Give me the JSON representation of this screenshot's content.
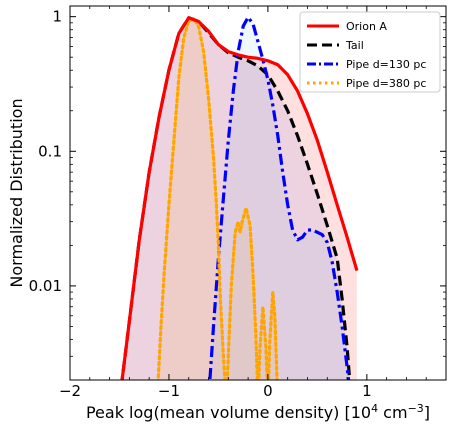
{
  "chart_data": {
    "type": "area",
    "xlabel": "Peak log(mean volume density) [10",
    "xlabel_sup1": "4",
    "xlabel_mid": " cm",
    "xlabel_sup2": "−3",
    "xlabel_end": "]",
    "ylabel": "Normalized Distribution",
    "xlim": [
      -2.0,
      1.8
    ],
    "ylim": [
      0.002,
      1.2
    ],
    "yscale": "log",
    "x_ticks": [
      -2,
      -1,
      0,
      1
    ],
    "x_tick_labels": [
      "−2",
      "−1",
      "0",
      "1"
    ],
    "y_ticks": [
      0.01,
      0.1,
      1
    ],
    "y_tick_labels": [
      "0.01",
      "0.1",
      "1"
    ],
    "legend_position": "top-right",
    "series": [
      {
        "name": "Orion A",
        "color": "#ff0000",
        "style": "solid",
        "fill": "rgba(255,0,0,0.12)",
        "points": [
          [
            -1.5,
            0.0014
          ],
          [
            -1.4,
            0.0055
          ],
          [
            -1.3,
            0.022
          ],
          [
            -1.2,
            0.07
          ],
          [
            -1.1,
            0.18
          ],
          [
            -1.0,
            0.4
          ],
          [
            -0.9,
            0.75
          ],
          [
            -0.8,
            0.98
          ],
          [
            -0.7,
            0.92
          ],
          [
            -0.6,
            0.78
          ],
          [
            -0.5,
            0.62
          ],
          [
            -0.4,
            0.55
          ],
          [
            -0.3,
            0.52
          ],
          [
            -0.2,
            0.5
          ],
          [
            -0.1,
            0.49
          ],
          [
            0.0,
            0.47
          ],
          [
            0.1,
            0.44
          ],
          [
            0.2,
            0.37
          ],
          [
            0.3,
            0.28
          ],
          [
            0.4,
            0.19
          ],
          [
            0.5,
            0.12
          ],
          [
            0.6,
            0.07
          ],
          [
            0.7,
            0.04
          ],
          [
            0.8,
            0.023
          ],
          [
            0.9,
            0.013
          ]
        ]
      },
      {
        "name": "Tail",
        "color": "#000000",
        "style": "dashed",
        "fill": "rgba(130,130,220,0.14)",
        "points": [
          [
            -1.5,
            0.0014
          ],
          [
            -1.4,
            0.0055
          ],
          [
            -1.3,
            0.022
          ],
          [
            -1.2,
            0.07
          ],
          [
            -1.1,
            0.18
          ],
          [
            -1.0,
            0.4
          ],
          [
            -0.9,
            0.75
          ],
          [
            -0.8,
            0.98
          ],
          [
            -0.7,
            0.92
          ],
          [
            -0.6,
            0.76
          ],
          [
            -0.5,
            0.62
          ],
          [
            -0.4,
            0.54
          ],
          [
            -0.3,
            0.5
          ],
          [
            -0.2,
            0.47
          ],
          [
            -0.1,
            0.43
          ],
          [
            0.0,
            0.37
          ],
          [
            0.1,
            0.28
          ],
          [
            0.2,
            0.2
          ],
          [
            0.3,
            0.13
          ],
          [
            0.4,
            0.08
          ],
          [
            0.5,
            0.048
          ],
          [
            0.6,
            0.028
          ],
          [
            0.7,
            0.016
          ],
          [
            0.75,
            0.008
          ],
          [
            0.8,
            0.0035
          ],
          [
            0.85,
            0.0012
          ]
        ]
      },
      {
        "name": "Pipe d=130 pc",
        "color": "#0000ff",
        "style": "dashdot",
        "fill": "rgba(0,140,255,0.06)",
        "points": [
          [
            -0.6,
            0.0014
          ],
          [
            -0.55,
            0.005
          ],
          [
            -0.5,
            0.016
          ],
          [
            -0.45,
            0.045
          ],
          [
            -0.4,
            0.12
          ],
          [
            -0.35,
            0.28
          ],
          [
            -0.3,
            0.55
          ],
          [
            -0.25,
            0.85
          ],
          [
            -0.2,
            0.99
          ],
          [
            -0.15,
            0.88
          ],
          [
            -0.1,
            0.65
          ],
          [
            -0.05,
            0.48
          ],
          [
            0.0,
            0.34
          ],
          [
            0.05,
            0.22
          ],
          [
            0.1,
            0.13
          ],
          [
            0.15,
            0.07
          ],
          [
            0.2,
            0.04
          ],
          [
            0.25,
            0.026
          ],
          [
            0.3,
            0.022
          ],
          [
            0.35,
            0.023
          ],
          [
            0.4,
            0.026
          ],
          [
            0.45,
            0.026
          ],
          [
            0.5,
            0.025
          ],
          [
            0.55,
            0.024
          ],
          [
            0.6,
            0.021
          ],
          [
            0.65,
            0.015
          ],
          [
            0.7,
            0.009
          ],
          [
            0.75,
            0.005
          ],
          [
            0.8,
            0.0025
          ],
          [
            0.85,
            0.0012
          ]
        ]
      },
      {
        "name": "Pipe d=380 pc",
        "color": "#ffa500",
        "style": "dotted",
        "fill": "rgba(255,165,0,0.10)",
        "points": [
          [
            -1.12,
            0.0014
          ],
          [
            -1.08,
            0.005
          ],
          [
            -1.05,
            0.012
          ],
          [
            -1.0,
            0.04
          ],
          [
            -0.95,
            0.12
          ],
          [
            -0.9,
            0.35
          ],
          [
            -0.85,
            0.7
          ],
          [
            -0.8,
            0.92
          ],
          [
            -0.75,
            0.97
          ],
          [
            -0.7,
            0.85
          ],
          [
            -0.65,
            0.55
          ],
          [
            -0.6,
            0.25
          ],
          [
            -0.55,
            0.09
          ],
          [
            -0.52,
            0.04
          ],
          [
            -0.5,
            0.02
          ],
          [
            -0.48,
            0.008
          ],
          [
            -0.45,
            0.003
          ],
          [
            -0.42,
            0.0014
          ],
          [
            -0.4,
            0.003
          ],
          [
            -0.37,
            0.01
          ],
          [
            -0.33,
            0.025
          ],
          [
            -0.3,
            0.03
          ],
          [
            -0.28,
            0.025
          ],
          [
            -0.26,
            0.03
          ],
          [
            -0.22,
            0.038
          ],
          [
            -0.18,
            0.028
          ],
          [
            -0.15,
            0.012
          ],
          [
            -0.12,
            0.004
          ],
          [
            -0.1,
            0.0014
          ],
          [
            -0.08,
            0.0035
          ],
          [
            -0.05,
            0.007
          ],
          [
            -0.02,
            0.0035
          ],
          [
            0.0,
            0.0014
          ],
          [
            0.02,
            0.004
          ],
          [
            0.05,
            0.009
          ],
          [
            0.07,
            0.006
          ],
          [
            0.1,
            0.0014
          ]
        ]
      }
    ]
  }
}
